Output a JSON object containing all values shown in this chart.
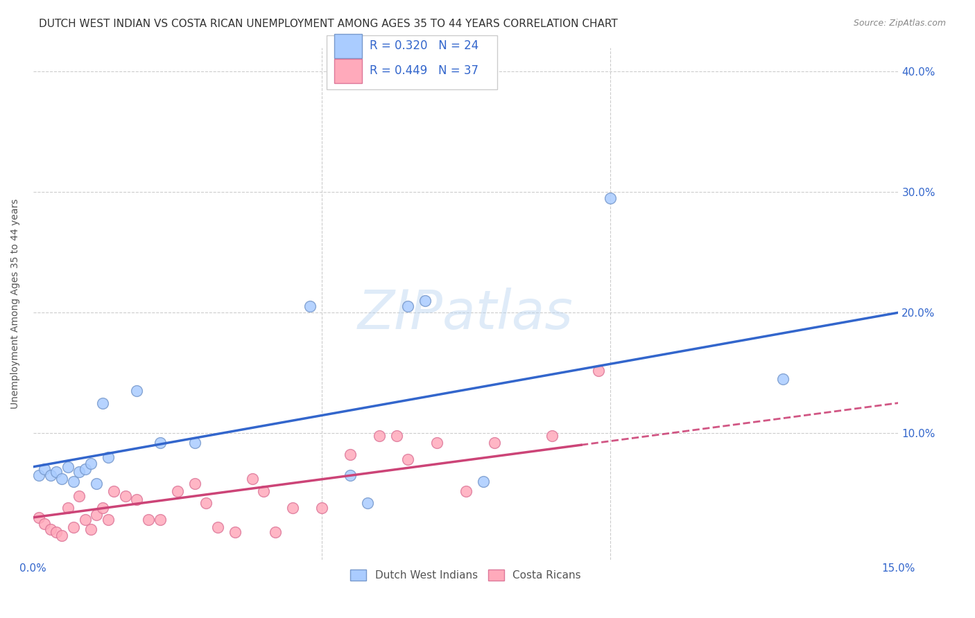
{
  "title": "DUTCH WEST INDIAN VS COSTA RICAN UNEMPLOYMENT AMONG AGES 35 TO 44 YEARS CORRELATION CHART",
  "source": "Source: ZipAtlas.com",
  "ylabel": "Unemployment Among Ages 35 to 44 years",
  "xlim": [
    0.0,
    0.15
  ],
  "ylim": [
    -0.005,
    0.42
  ],
  "grid_color": "#cccccc",
  "background_color": "#ffffff",
  "dwi_color": "#aaccff",
  "dwi_edge_color": "#7799cc",
  "cr_color": "#ffaabb",
  "cr_edge_color": "#dd7799",
  "dwi_R": 0.32,
  "dwi_N": 24,
  "cr_R": 0.449,
  "cr_N": 37,
  "dwi_x": [
    0.001,
    0.002,
    0.003,
    0.004,
    0.005,
    0.006,
    0.007,
    0.008,
    0.009,
    0.01,
    0.011,
    0.012,
    0.013,
    0.018,
    0.022,
    0.028,
    0.048,
    0.055,
    0.058,
    0.065,
    0.068,
    0.078,
    0.1,
    0.13
  ],
  "dwi_y": [
    0.065,
    0.07,
    0.065,
    0.068,
    0.062,
    0.072,
    0.06,
    0.068,
    0.07,
    0.075,
    0.058,
    0.125,
    0.08,
    0.135,
    0.092,
    0.092,
    0.205,
    0.065,
    0.042,
    0.205,
    0.21,
    0.06,
    0.295,
    0.145
  ],
  "cr_x": [
    0.001,
    0.002,
    0.003,
    0.004,
    0.005,
    0.006,
    0.007,
    0.008,
    0.009,
    0.01,
    0.011,
    0.012,
    0.013,
    0.014,
    0.016,
    0.018,
    0.02,
    0.022,
    0.025,
    0.028,
    0.03,
    0.032,
    0.035,
    0.038,
    0.04,
    0.042,
    0.045,
    0.05,
    0.055,
    0.06,
    0.063,
    0.065,
    0.07,
    0.075,
    0.08,
    0.09,
    0.098
  ],
  "cr_y": [
    0.03,
    0.025,
    0.02,
    0.018,
    0.015,
    0.038,
    0.022,
    0.048,
    0.028,
    0.02,
    0.032,
    0.038,
    0.028,
    0.052,
    0.048,
    0.045,
    0.028,
    0.028,
    0.052,
    0.058,
    0.042,
    0.022,
    0.018,
    0.062,
    0.052,
    0.018,
    0.038,
    0.038,
    0.082,
    0.098,
    0.098,
    0.078,
    0.092,
    0.052,
    0.092,
    0.098,
    0.152
  ],
  "dwi_line_color": "#3366cc",
  "cr_line_color": "#cc4477",
  "cr_line_dashed_after": 0.095,
  "dwi_line_x0": 0.0,
  "dwi_line_y0": 0.072,
  "dwi_line_x1": 0.15,
  "dwi_line_y1": 0.2,
  "cr_line_x0": 0.0,
  "cr_line_y0": 0.03,
  "cr_line_x1": 0.15,
  "cr_line_y1": 0.125,
  "legend_labels": [
    "Dutch West Indians",
    "Costa Ricans"
  ],
  "title_fontsize": 11,
  "axis_label_fontsize": 10,
  "tick_fontsize": 11,
  "legend_fontsize": 11
}
